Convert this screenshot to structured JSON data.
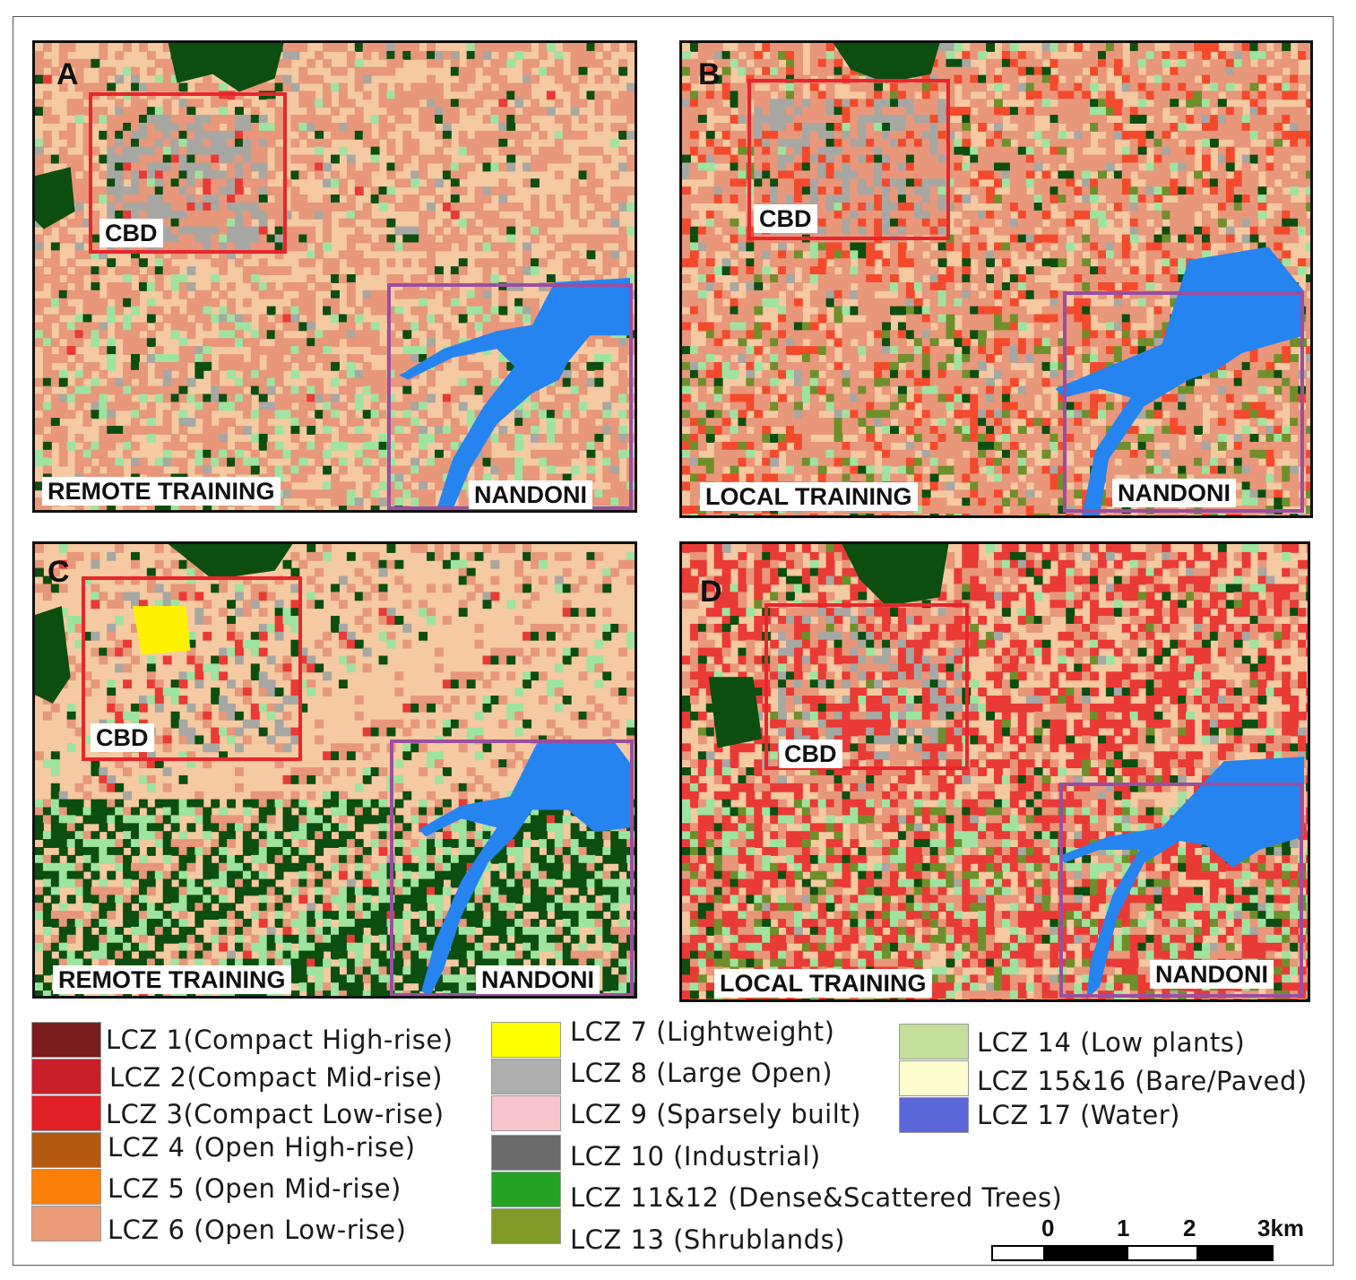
{
  "panels": [
    {
      "letter": "A",
      "cbd": "CBD",
      "nandoni": "NANDONI",
      "training": "REMOTE TRAINING"
    },
    {
      "letter": "B",
      "cbd": "CBD",
      "nandoni": "NANDONI",
      "training": "LOCAL TRAINING"
    },
    {
      "letter": "C",
      "cbd": "CBD",
      "nandoni": "NANDONI",
      "training": "REMOTE TRAINING"
    },
    {
      "letter": "D",
      "cbd": "CBD",
      "nandoni": "NANDONI",
      "training": "LOCAL TRAINING"
    }
  ],
  "legend": [
    {
      "label": "LCZ 1(Compact High-rise)",
      "color": "#7b1c1f"
    },
    {
      "label": "LCZ 2(Compact Mid-rise)",
      "color": "#c8202b"
    },
    {
      "label": "LCZ 3(Compact Low-rise)",
      "color": "#e11f26"
    },
    {
      "label": "LCZ 4 (Open High-rise)",
      "color": "#b35a11"
    },
    {
      "label": "LCZ 5 (Open Mid-rise)",
      "color": "#fb7f07"
    },
    {
      "label": "LCZ 6 (Open Low-rise)",
      "color": "#ec9b79"
    },
    {
      "label": "LCZ 7 (Lightweight)",
      "color": "#ffff00"
    },
    {
      "label": "LCZ 8 (Large Open)",
      "color": "#aeaeae"
    },
    {
      "label": "LCZ 9 (Sparsely built)",
      "color": "#f7c5cc"
    },
    {
      "label": "LCZ 10 (Industrial)",
      "color": "#6b6b6b"
    },
    {
      "label": "LCZ 11&12 (Dense&Scattered Trees)",
      "color": "#23a223"
    },
    {
      "label": "LCZ 13 (Shrublands)",
      "color": "#7e9b27"
    },
    {
      "label": "LCZ 14 (Low plants)",
      "color": "#c3df9a"
    },
    {
      "label": "LCZ 15&16 (Bare/Paved)",
      "color": "#fcfccf"
    },
    {
      "label": "LCZ 17 (Water)",
      "color": "#5b66d9"
    }
  ],
  "map_colors": {
    "sand": "#f5c9a1",
    "salmon": "#e8977b",
    "grey": "#a7a7a3",
    "dark_green": "#0b4e10",
    "light_green": "#9fe3a0",
    "water": "#2584f0",
    "bright_red": "#f44a2b",
    "red": "#ea3a35",
    "olive": "#6f8f2a",
    "yellow": "#fff200"
  },
  "scale": {
    "ticks": [
      "0",
      "1",
      "2",
      "3km"
    ]
  }
}
